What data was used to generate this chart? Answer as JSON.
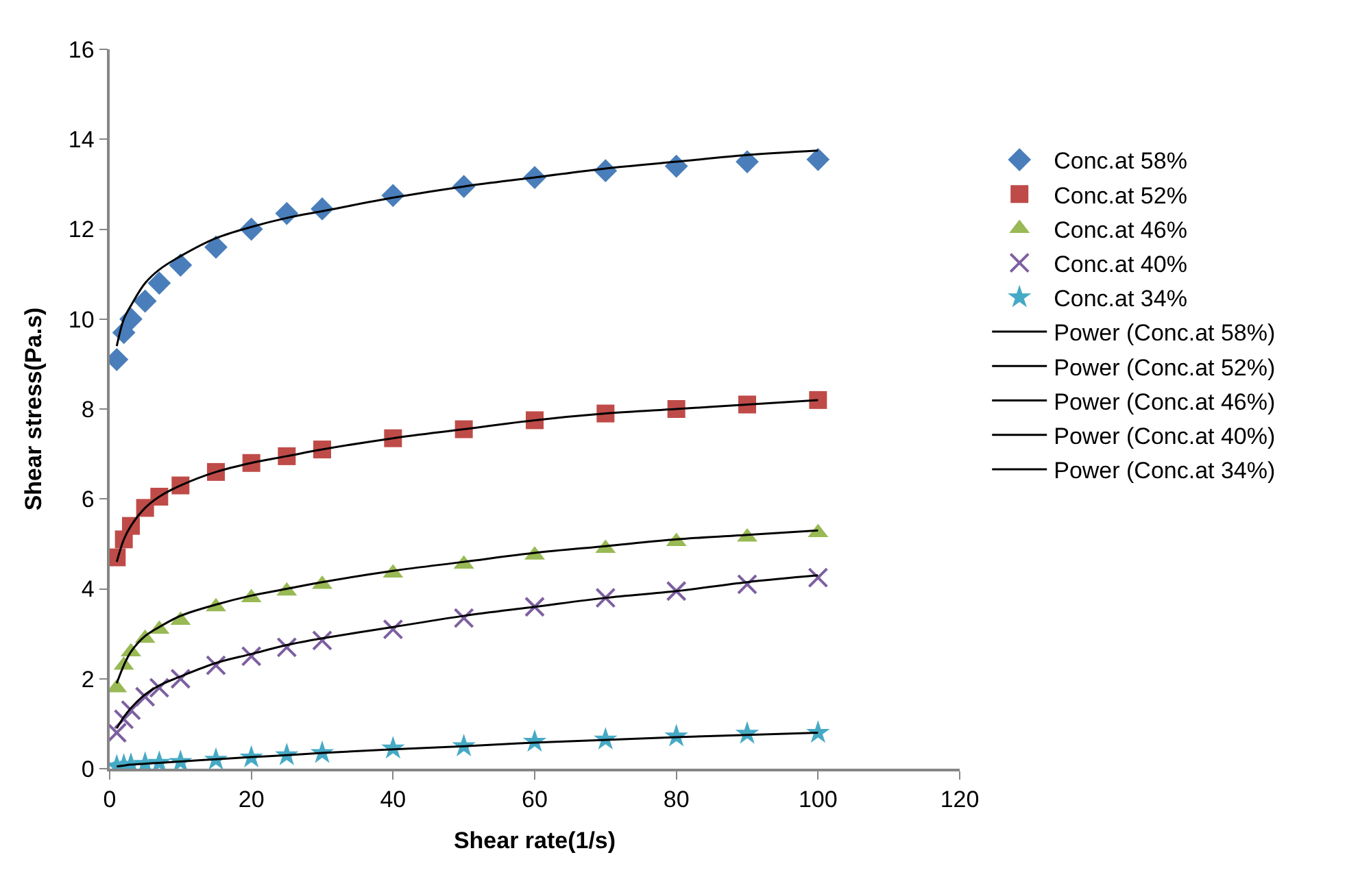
{
  "chart_data": {
    "type": "scatter",
    "xlabel": "Shear rate(1/s)",
    "ylabel": "Shear stress(Pa.s)",
    "xlim": [
      0,
      120
    ],
    "xticks": [
      0,
      20,
      40,
      60,
      80,
      100,
      120
    ],
    "ylim": [
      0,
      16
    ],
    "yticks": [
      0,
      2,
      4,
      6,
      8,
      10,
      12,
      14,
      16
    ],
    "legend": "right",
    "x": [
      1,
      2,
      3,
      5,
      7,
      10,
      15,
      20,
      25,
      30,
      40,
      50,
      60,
      70,
      80,
      90,
      100
    ],
    "series": [
      {
        "name": "Conc.at 58%",
        "color": "#4a7ebb",
        "marker": "diamond",
        "values": [
          9.1,
          9.7,
          10.0,
          10.4,
          10.8,
          11.2,
          11.6,
          12.0,
          12.35,
          12.45,
          12.75,
          12.95,
          13.15,
          13.3,
          13.4,
          13.5,
          13.55
        ]
      },
      {
        "name": "Conc.at 52%",
        "color": "#be4b48",
        "marker": "square",
        "values": [
          4.7,
          5.1,
          5.4,
          5.8,
          6.05,
          6.3,
          6.6,
          6.8,
          6.95,
          7.1,
          7.35,
          7.55,
          7.75,
          7.9,
          8.0,
          8.1,
          8.2
        ]
      },
      {
        "name": "Conc.at 46%",
        "color": "#98b954",
        "marker": "triangle",
        "values": [
          1.8,
          2.3,
          2.6,
          2.9,
          3.1,
          3.3,
          3.6,
          3.8,
          3.95,
          4.1,
          4.35,
          4.55,
          4.75,
          4.9,
          5.05,
          5.15,
          5.25
        ]
      },
      {
        "name": "Conc.at 40%",
        "color": "#7d60a0",
        "marker": "cross",
        "values": [
          0.8,
          1.1,
          1.3,
          1.6,
          1.8,
          2.0,
          2.3,
          2.5,
          2.7,
          2.85,
          3.1,
          3.35,
          3.6,
          3.8,
          3.95,
          4.1,
          4.25
        ]
      },
      {
        "name": "Conc.at 34%",
        "color": "#46aac5",
        "marker": "star",
        "values": [
          0.05,
          0.07,
          0.09,
          0.11,
          0.13,
          0.15,
          0.2,
          0.25,
          0.3,
          0.35,
          0.45,
          0.5,
          0.6,
          0.65,
          0.72,
          0.78,
          0.8
        ]
      },
      {
        "name": "Power (Conc.at 58%)",
        "type": "line",
        "color": "#000000",
        "marker": "none",
        "values": [
          9.4,
          10.0,
          10.3,
          10.8,
          11.1,
          11.4,
          11.8,
          12.05,
          12.25,
          12.4,
          12.7,
          12.95,
          13.15,
          13.35,
          13.5,
          13.65,
          13.75
        ]
      },
      {
        "name": "Power (Conc.at 52%)",
        "type": "line",
        "color": "#000000",
        "marker": "none",
        "values": [
          4.6,
          5.1,
          5.4,
          5.8,
          6.05,
          6.3,
          6.6,
          6.8,
          6.95,
          7.1,
          7.35,
          7.55,
          7.75,
          7.9,
          8.0,
          8.1,
          8.2
        ]
      },
      {
        "name": "Power (Conc.at 46%)",
        "type": "line",
        "color": "#000000",
        "marker": "none",
        "values": [
          1.9,
          2.3,
          2.6,
          2.95,
          3.15,
          3.4,
          3.65,
          3.85,
          4.0,
          4.15,
          4.4,
          4.6,
          4.8,
          4.95,
          5.1,
          5.2,
          5.3
        ]
      },
      {
        "name": "Power (Conc.at 40%)",
        "type": "line",
        "color": "#000000",
        "marker": "none",
        "values": [
          0.9,
          1.15,
          1.35,
          1.65,
          1.85,
          2.05,
          2.35,
          2.55,
          2.75,
          2.9,
          3.15,
          3.4,
          3.6,
          3.8,
          3.95,
          4.15,
          4.3
        ]
      },
      {
        "name": "Power (Conc.at 34%)",
        "type": "line",
        "color": "#000000",
        "marker": "none",
        "values": [
          0.05,
          0.07,
          0.09,
          0.11,
          0.13,
          0.16,
          0.21,
          0.26,
          0.3,
          0.35,
          0.43,
          0.5,
          0.58,
          0.64,
          0.7,
          0.75,
          0.8
        ]
      }
    ]
  }
}
